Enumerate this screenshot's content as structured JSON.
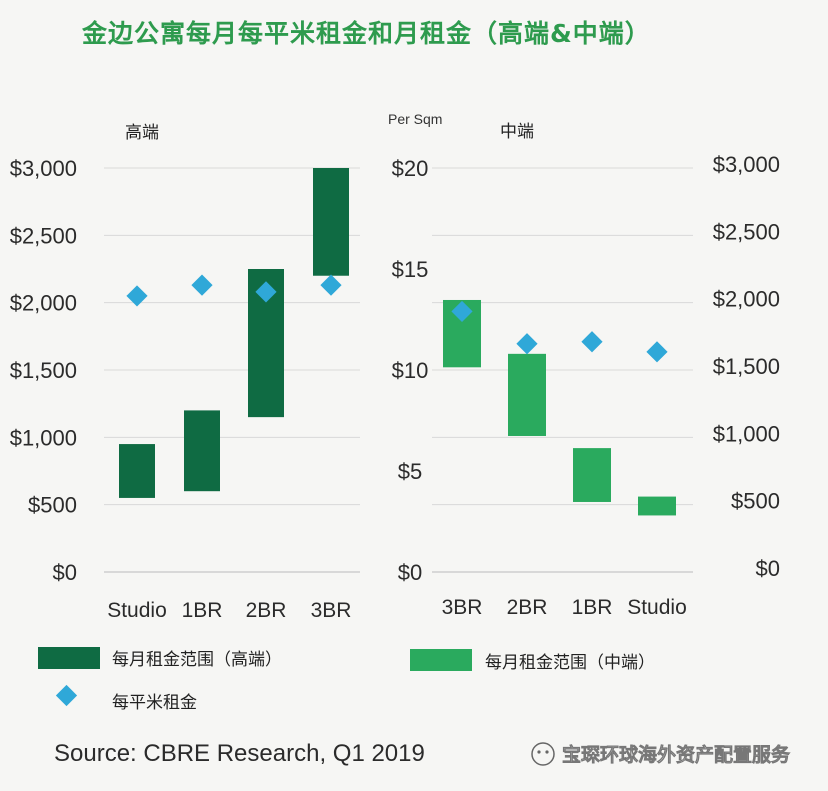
{
  "title": "金边公寓每月每平米租金和月租金（高端&中端）",
  "source": "Source: CBRE Research, Q1 2019",
  "watermark": "宝琛环球海外资产配置服务",
  "colors": {
    "title": "#2e9b4e",
    "high_end_bar": "#0f6b43",
    "mid_end_bar": "#2aaa5e",
    "per_sqm_marker": "#2fa8d8",
    "grid": "#d9d9d9"
  },
  "legend": {
    "high_end_range": "每月租金范围（高端）",
    "mid_end_range": "每月租金范围（中端）",
    "per_sqm": "每平米租金"
  },
  "chart_data": [
    {
      "type": "range_bar_with_markers",
      "panel_title": "高端",
      "categories": [
        "Studio",
        "1BR",
        "2BR",
        "3BR"
      ],
      "y_ticks": [
        "$0",
        "$500",
        "$1,000",
        "$1,500",
        "$2,000",
        "$2,500",
        "$3,000"
      ],
      "ylim": [
        0,
        3000
      ],
      "series": [
        {
          "name": "每月租金范围（高端）",
          "kind": "range",
          "low": [
            550,
            600,
            1150,
            2200
          ],
          "high": [
            950,
            1200,
            2250,
            3000
          ]
        },
        {
          "name": "每平米租金",
          "kind": "marker",
          "values": [
            2050,
            2130,
            2080,
            2130
          ]
        }
      ],
      "grid": true
    },
    {
      "type": "range_bar_with_markers",
      "panel_title": "中端",
      "left_axis_label": "Per Sqm",
      "categories": [
        "3BR",
        "2BR",
        "1BR",
        "Studio"
      ],
      "y_ticks_left": [
        "$0",
        "$5",
        "$10",
        "$15",
        "$20"
      ],
      "ylim_left": [
        0,
        20
      ],
      "y_ticks_right": [
        "$0",
        "$500",
        "$1,000",
        "$1,500",
        "$2,000",
        "$2,500",
        "$3,000"
      ],
      "ylim_right": [
        0,
        3000
      ],
      "series": [
        {
          "name": "每月租金范围（中端）",
          "kind": "range",
          "axis": "right",
          "low": [
            1520,
            1010,
            520,
            420
          ],
          "high": [
            2020,
            1620,
            920,
            560
          ]
        },
        {
          "name": "每平米租金",
          "kind": "marker",
          "axis": "left",
          "values": [
            12.9,
            11.3,
            11.4,
            10.9
          ]
        }
      ],
      "grid": true
    }
  ]
}
